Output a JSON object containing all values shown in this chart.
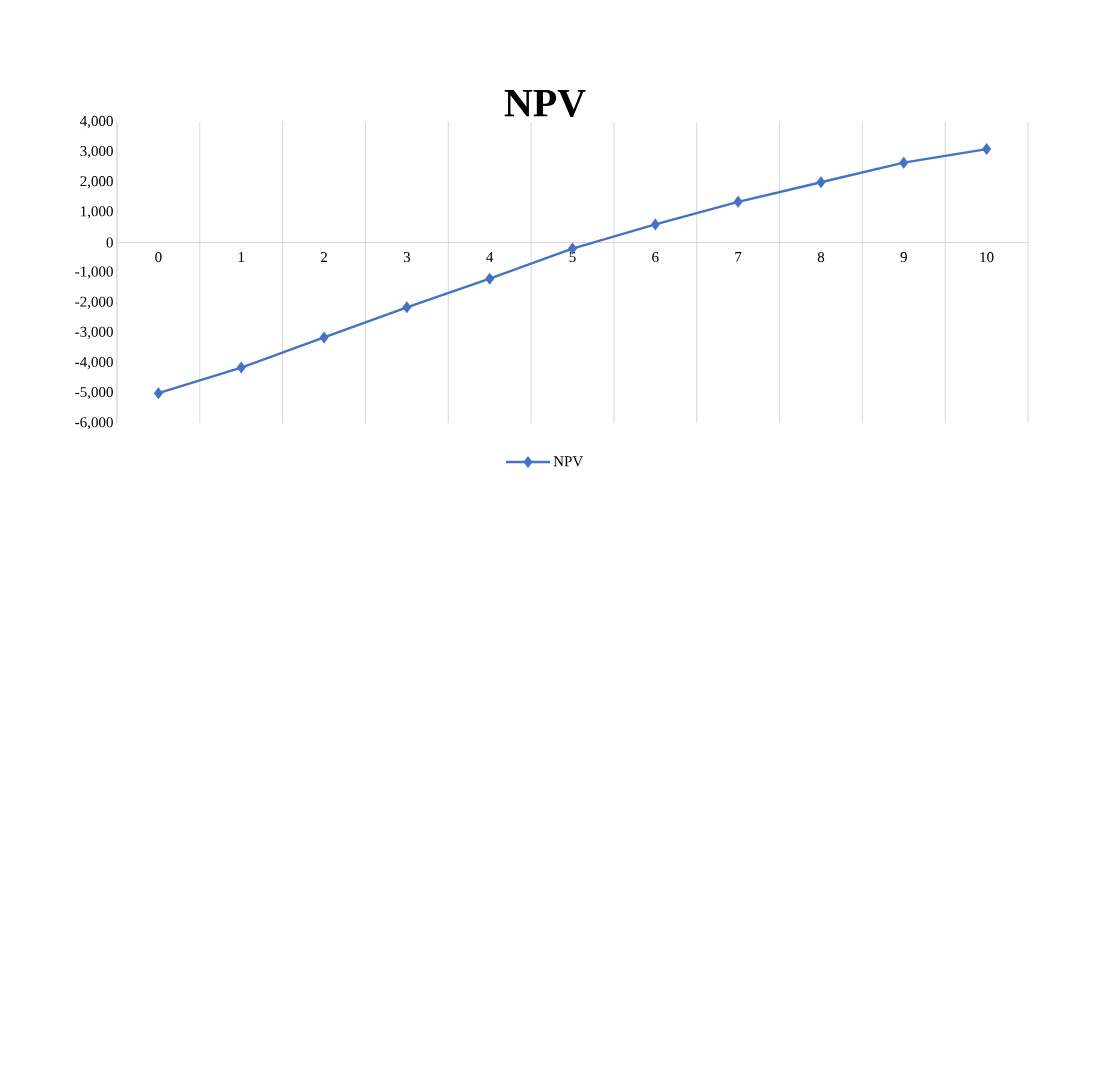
{
  "chart_data": {
    "type": "line",
    "title": "NPV",
    "categories": [
      "0",
      "1",
      "2",
      "3",
      "4",
      "5",
      "6",
      "7",
      "8",
      "9",
      "10"
    ],
    "series": [
      {
        "name": "NPV",
        "color": "#4472c4",
        "values": [
          -5000,
          -4150,
          -3150,
          -2150,
          -1200,
          -200,
          600,
          1350,
          2000,
          2650,
          3100
        ]
      }
    ],
    "ylim": [
      -6000,
      4000
    ],
    "yticks": [
      {
        "value": 4000,
        "label": "4,000"
      },
      {
        "value": 3000,
        "label": "3,000"
      },
      {
        "value": 2000,
        "label": "2,000"
      },
      {
        "value": 1000,
        "label": "1,000"
      },
      0,
      {
        "value": -1000,
        "label": "-1,000"
      },
      {
        "value": -2000,
        "label": "-2,000"
      },
      {
        "value": -3000,
        "label": "-3,000"
      },
      {
        "value": -4000,
        "label": "-4,000"
      },
      {
        "value": -5000,
        "label": "-5,000"
      },
      {
        "value": -6000,
        "label": "-6,000"
      }
    ],
    "grid": "x",
    "legend": "bottom",
    "marker": "diamond",
    "line_style": "solid"
  }
}
